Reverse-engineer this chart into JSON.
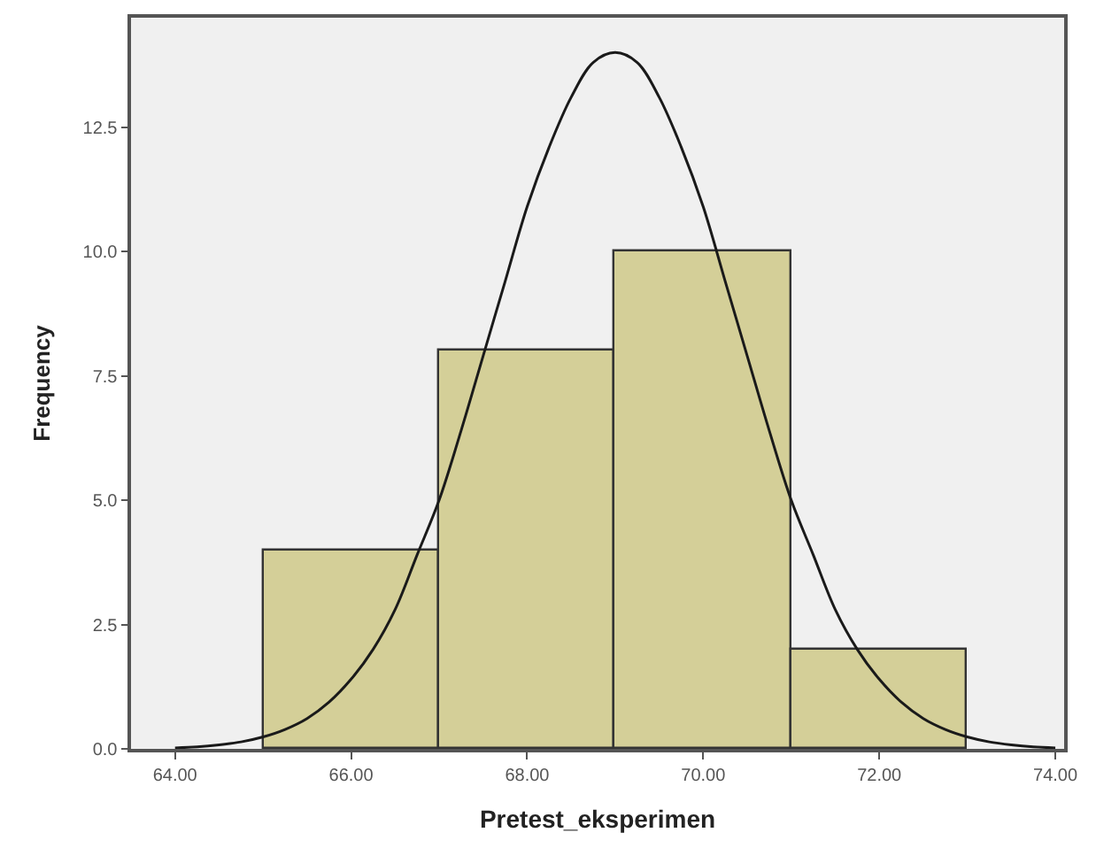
{
  "chart_data": {
    "type": "histogram",
    "xlabel": "Pretest_eksperimen",
    "ylabel": "Frequency",
    "bins": [
      65,
      67,
      69,
      71,
      73
    ],
    "values": [
      4,
      8,
      10,
      2
    ],
    "color": "#d4cf98",
    "series": [
      {
        "type": "line",
        "color": "#1a1a1a",
        "x": [
          64,
          64.25,
          64.5,
          64.75,
          65,
          65.25,
          65.5,
          65.75,
          66,
          66.25,
          66.5,
          66.75,
          67,
          67.25,
          67.5,
          67.75,
          68,
          68.25,
          68.5,
          68.75,
          69,
          69.25,
          69.5,
          69.75,
          70,
          70.25,
          70.5,
          70.75,
          71,
          71.25,
          71.5,
          71.75,
          72,
          72.25,
          72.5,
          72.75,
          73,
          73.25,
          73.5,
          73.75,
          74
        ],
        "values": [
          0.02,
          0.04,
          0.08,
          0.14,
          0.24,
          0.39,
          0.61,
          0.94,
          1.4,
          2.0,
          2.8,
          3.9,
          5.0,
          6.4,
          7.9,
          9.4,
          10.9,
          12.1,
          13.1,
          13.8,
          14.0,
          13.8,
          13.1,
          12.1,
          10.9,
          9.4,
          7.9,
          6.4,
          5.0,
          3.9,
          2.8,
          2.0,
          1.4,
          0.94,
          0.61,
          0.39,
          0.24,
          0.14,
          0.08,
          0.04,
          0.02
        ]
      }
    ],
    "xlim": [
      63.5,
      74.1
    ],
    "ylim": [
      0,
      14.7
    ],
    "xticks": [
      {
        "value": 64,
        "label": "64.00"
      },
      {
        "value": 66,
        "label": "66.00"
      },
      {
        "value": 68,
        "label": "68.00"
      },
      {
        "value": 70,
        "label": "70.00"
      },
      {
        "value": 72,
        "label": "72.00"
      },
      {
        "value": 74,
        "label": "74.00"
      }
    ],
    "yticks": [
      {
        "value": 0,
        "label": "0.0"
      },
      {
        "value": 2.5,
        "label": "2.5"
      },
      {
        "value": 5,
        "label": "5.0"
      },
      {
        "value": 7.5,
        "label": "7.5"
      },
      {
        "value": 10,
        "label": "10.0"
      },
      {
        "value": 12.5,
        "label": "12.5"
      }
    ],
    "grid": false
  }
}
